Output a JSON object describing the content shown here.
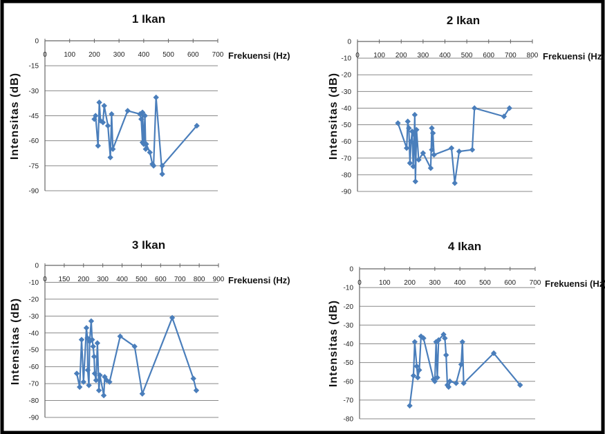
{
  "chart_data": [
    {
      "type": "line",
      "title": "1 Ikan",
      "xlabel": "Frekuensi (Hz)",
      "ylabel": "Intensitas (dB)",
      "xlim": [
        0,
        700
      ],
      "ylim": [
        -90,
        0
      ],
      "x_ticks": [
        "0",
        "100",
        "200",
        "300",
        "400",
        "500",
        "600",
        "700"
      ],
      "y_ticks": [
        "0",
        "-15",
        "-30",
        "-45",
        "-60",
        "-75",
        "-90"
      ],
      "series": [
        {
          "color": "#4A7EBB",
          "points": [
            [
              200,
              -47
            ],
            [
              205,
              -45
            ],
            [
              215,
              -63
            ],
            [
              220,
              -37
            ],
            [
              225,
              -48
            ],
            [
              235,
              -49
            ],
            [
              240,
              -39
            ],
            [
              255,
              -51
            ],
            [
              265,
              -70
            ],
            [
              270,
              -44
            ],
            [
              275,
              -65
            ],
            [
              335,
              -42
            ],
            [
              385,
              -44
            ],
            [
              390,
              -47
            ],
            [
              395,
              -61
            ],
            [
              395,
              -43
            ],
            [
              400,
              -62
            ],
            [
              405,
              -45
            ],
            [
              408,
              -65
            ],
            [
              410,
              -62
            ],
            [
              425,
              -67
            ],
            [
              435,
              -74
            ],
            [
              440,
              -75
            ],
            [
              450,
              -34
            ],
            [
              475,
              -80
            ],
            [
              475,
              -75
            ],
            [
              615,
              -51
            ]
          ]
        }
      ]
    },
    {
      "type": "line",
      "title": "2 Ikan",
      "xlabel": "Frekuensi (Hz)",
      "ylabel": "Intensitas (dB)",
      "xlim": [
        0,
        800
      ],
      "ylim": [
        -90,
        0
      ],
      "x_ticks": [
        "0",
        "100",
        "200",
        "300",
        "400",
        "500",
        "600",
        "700",
        "800"
      ],
      "y_ticks": [
        "0",
        "-10",
        "-20",
        "-30",
        "-40",
        "-50",
        "-60",
        "-70",
        "-80",
        "-90"
      ],
      "series": [
        {
          "color": "#4A7EBB",
          "points": [
            [
              185,
              -49
            ],
            [
              225,
              -64
            ],
            [
              230,
              -48
            ],
            [
              235,
              -52
            ],
            [
              240,
              -73
            ],
            [
              245,
              -60
            ],
            [
              250,
              -54
            ],
            [
              255,
              -75
            ],
            [
              260,
              -56
            ],
            [
              262,
              -44
            ],
            [
              265,
              -84
            ],
            [
              270,
              -53
            ],
            [
              280,
              -71
            ],
            [
              300,
              -67
            ],
            [
              335,
              -76
            ],
            [
              340,
              -52
            ],
            [
              340,
              -65
            ],
            [
              345,
              -55
            ],
            [
              350,
              -68
            ],
            [
              430,
              -64
            ],
            [
              445,
              -85
            ],
            [
              465,
              -66
            ],
            [
              525,
              -65
            ],
            [
              535,
              -40
            ],
            [
              670,
              -45
            ],
            [
              695,
              -40
            ]
          ]
        }
      ]
    },
    {
      "type": "line",
      "title": "3 Ikan",
      "xlabel": "Frekuensi (Hz)",
      "ylabel": "Intensitas (dB)",
      "xlim": [
        0,
        900
      ],
      "ylim": [
        -90,
        0
      ],
      "x_ticks": [
        "0",
        "150",
        "200",
        "300",
        "400",
        "500",
        "600",
        "700",
        "800",
        "900"
      ],
      "y_ticks": [
        "0",
        "-10",
        "-20",
        "-30",
        "-40",
        "-50",
        "-60",
        "-70",
        "-80",
        "-90"
      ],
      "series": [
        {
          "color": "#4A7EBB",
          "points": [
            [
              165,
              -64
            ],
            [
              180,
              -72
            ],
            [
              190,
              -44
            ],
            [
              200,
              -69
            ],
            [
              215,
              -37
            ],
            [
              220,
              -43
            ],
            [
              222,
              -62
            ],
            [
              228,
              -71
            ],
            [
              232,
              -45
            ],
            [
              240,
              -33
            ],
            [
              245,
              -44
            ],
            [
              250,
              -48
            ],
            [
              255,
              -54
            ],
            [
              258,
              -64
            ],
            [
              265,
              -68
            ],
            [
              272,
              -46
            ],
            [
              280,
              -74
            ],
            [
              285,
              -65
            ],
            [
              305,
              -77
            ],
            [
              310,
              -66
            ],
            [
              320,
              -68
            ],
            [
              335,
              -69
            ],
            [
              390,
              -42
            ],
            [
              465,
              -48
            ],
            [
              505,
              -76
            ],
            [
              660,
              -31
            ],
            [
              770,
              -67
            ],
            [
              785,
              -74
            ]
          ]
        }
      ]
    },
    {
      "type": "line",
      "title": "4 Ikan",
      "xlabel": "Frekuensi (Hz)",
      "ylabel": "Intensitas (dB)",
      "xlim": [
        0,
        700
      ],
      "ylim": [
        -80,
        0
      ],
      "x_ticks": [
        "0",
        "100",
        "200",
        "300",
        "400",
        "500",
        "600",
        "700"
      ],
      "y_ticks": [
        "0",
        "-10",
        "-20",
        "-30",
        "-40",
        "-50",
        "-60",
        "-70",
        "-80"
      ],
      "series": [
        {
          "color": "#4A7EBB",
          "points": [
            [
              200,
              -73
            ],
            [
              215,
              -57
            ],
            [
              220,
              -39
            ],
            [
              228,
              -52
            ],
            [
              232,
              -58
            ],
            [
              238,
              -54
            ],
            [
              245,
              -36
            ],
            [
              255,
              -37
            ],
            [
              295,
              -59
            ],
            [
              300,
              -60
            ],
            [
              305,
              -39
            ],
            [
              310,
              -58
            ],
            [
              315,
              -38
            ],
            [
              335,
              -35
            ],
            [
              340,
              -37
            ],
            [
              345,
              -46
            ],
            [
              350,
              -62
            ],
            [
              355,
              -63
            ],
            [
              360,
              -60
            ],
            [
              385,
              -61
            ],
            [
              405,
              -51
            ],
            [
              410,
              -39
            ],
            [
              415,
              -61
            ],
            [
              535,
              -45
            ],
            [
              640,
              -62
            ]
          ]
        }
      ]
    }
  ]
}
